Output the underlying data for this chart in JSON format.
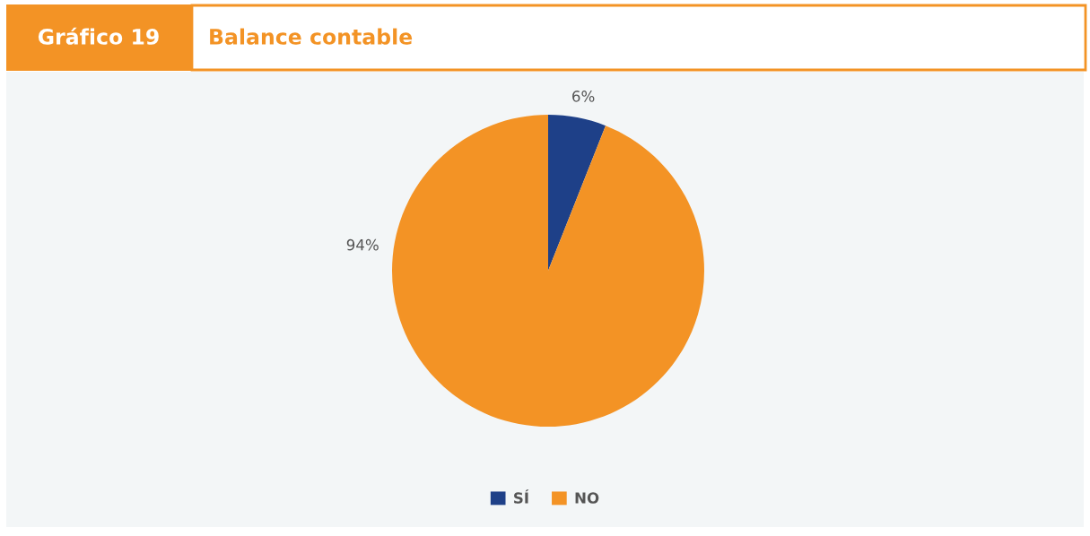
{
  "chart_data": {
    "type": "pie",
    "title": "Gráfico 19",
    "subtitle": "Balance contable",
    "categories": [
      "SÍ",
      "NO"
    ],
    "values": [
      6,
      94
    ],
    "colors": [
      "#1e4088",
      "#f39325"
    ],
    "value_labels": [
      "6%",
      "94%"
    ],
    "legend": "bottom"
  }
}
